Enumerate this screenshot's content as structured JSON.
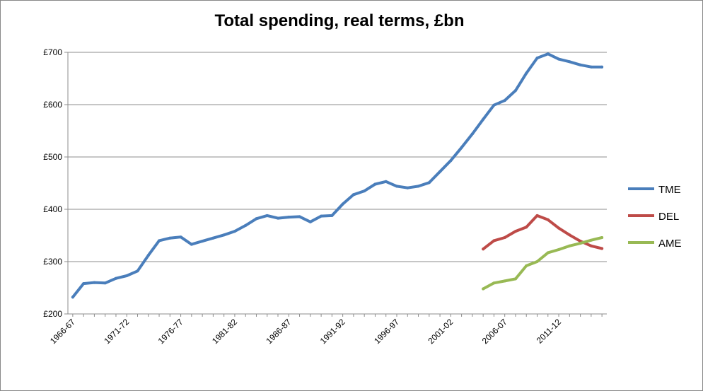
{
  "chart_data": {
    "type": "line",
    "title": "Total spending, real terms, £bn",
    "xlabel": "",
    "ylabel": "",
    "ylim": [
      200,
      700
    ],
    "yticks": [
      "£200",
      "£300",
      "£400",
      "£500",
      "£600",
      "£700"
    ],
    "ytick_values": [
      200,
      300,
      400,
      500,
      600,
      700
    ],
    "x": [
      "1966-67",
      "1967-68",
      "1968-69",
      "1969-70",
      "1970-71",
      "1971-72",
      "1972-73",
      "1973-74",
      "1974-75",
      "1975-76",
      "1976-77",
      "1977-78",
      "1978-79",
      "1979-80",
      "1980-81",
      "1981-82",
      "1982-83",
      "1983-84",
      "1984-85",
      "1985-86",
      "1986-87",
      "1987-88",
      "1988-89",
      "1989-90",
      "1990-91",
      "1991-92",
      "1992-93",
      "1993-94",
      "1994-95",
      "1995-96",
      "1996-97",
      "1997-98",
      "1998-99",
      "1999-00",
      "2000-01",
      "2001-02",
      "2002-03",
      "2003-04",
      "2004-05",
      "2005-06",
      "2006-07",
      "2007-08",
      "2008-09",
      "2009-10",
      "2010-11",
      "2011-12",
      "2012-13",
      "2013-14",
      "2014-15",
      "2015-16"
    ],
    "xtick_labels": [
      "1966-67",
      "1971-72",
      "1976-77",
      "1981-82",
      "1986-87",
      "1991-92",
      "1996-97",
      "2001-02",
      "2006-07",
      "2011-12"
    ],
    "grid": true,
    "legend_position": "right",
    "series": [
      {
        "name": "TME",
        "color": "#4a7ebb",
        "values": [
          232,
          258,
          260,
          259,
          268,
          273,
          282,
          312,
          340,
          345,
          347,
          333,
          339,
          345,
          351,
          358,
          369,
          382,
          388,
          383,
          385,
          386,
          376,
          387,
          388,
          410,
          428,
          435,
          448,
          453,
          444,
          441,
          444,
          451,
          472,
          493,
          518,
          544,
          572,
          599,
          608,
          627,
          660,
          689,
          697,
          687,
          682,
          676,
          672,
          672
        ]
      },
      {
        "name": "DEL",
        "color": "#be4b48",
        "values": [
          null,
          null,
          null,
          null,
          null,
          null,
          null,
          null,
          null,
          null,
          null,
          null,
          null,
          null,
          null,
          null,
          null,
          null,
          null,
          null,
          null,
          null,
          null,
          null,
          null,
          null,
          null,
          null,
          null,
          null,
          null,
          null,
          null,
          null,
          null,
          null,
          null,
          null,
          324,
          340,
          346,
          358,
          366,
          388,
          380,
          364,
          351,
          339,
          330,
          325
        ]
      },
      {
        "name": "AME",
        "color": "#98b954",
        "values": [
          null,
          null,
          null,
          null,
          null,
          null,
          null,
          null,
          null,
          null,
          null,
          null,
          null,
          null,
          null,
          null,
          null,
          null,
          null,
          null,
          null,
          null,
          null,
          null,
          null,
          null,
          null,
          null,
          null,
          null,
          null,
          null,
          null,
          null,
          null,
          null,
          null,
          null,
          248,
          259,
          263,
          267,
          292,
          300,
          317,
          323,
          330,
          335,
          341,
          346
        ]
      }
    ]
  }
}
